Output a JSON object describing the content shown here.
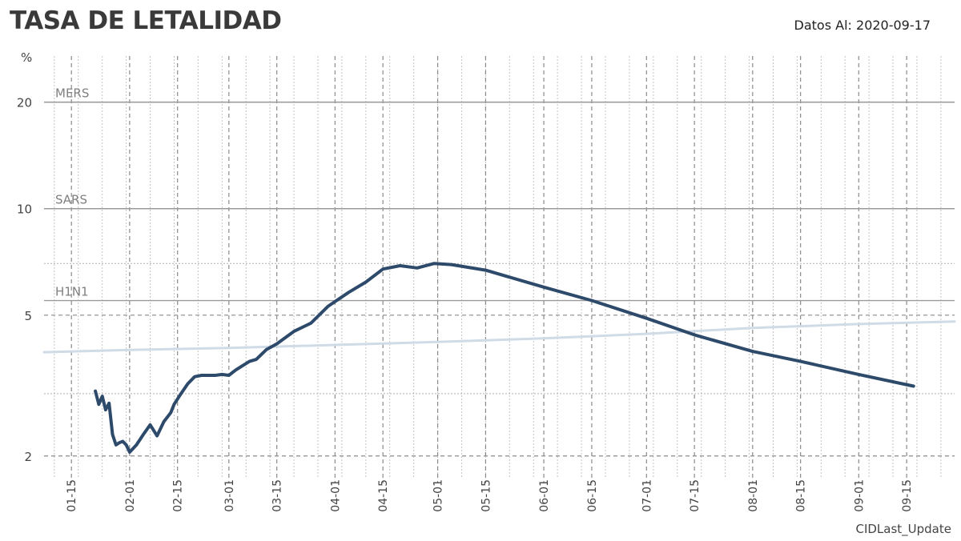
{
  "header": {
    "title": "TASA DE LETALIDAD",
    "date_label": "Datos Al: 2020-09-17"
  },
  "footer": {
    "label": "CIDLast_Update"
  },
  "chart_data": {
    "type": "line",
    "title": "TASA DE LETALIDAD",
    "ylabel": "%",
    "xlabel": "",
    "yscale": "log",
    "ylim": [
      1.8,
      27
    ],
    "xlim": [
      "2020-01-07",
      "2020-09-29"
    ],
    "grid": true,
    "yticks": [
      2,
      5,
      10,
      20
    ],
    "xticks": [
      "01-15",
      "02-01",
      "02-15",
      "03-01",
      "03-15",
      "04-01",
      "04-15",
      "05-01",
      "05-15",
      "06-01",
      "06-15",
      "07-01",
      "07-15",
      "08-01",
      "08-15",
      "09-01",
      "09-15"
    ],
    "reference_lines": [
      {
        "name": "MERS",
        "value": 20,
        "color": "#9a9a9a"
      },
      {
        "name": "SARS",
        "value": 10,
        "color": "#9a9a9a"
      },
      {
        "name": "H1N1",
        "value": 5.5,
        "color": "#9a9a9a"
      }
    ],
    "series": [
      {
        "color": "#2e4a6b",
        "x": [
          "2020-01-22",
          "2020-01-23",
          "2020-01-24",
          "2020-01-25",
          "2020-01-26",
          "2020-01-27",
          "2020-01-28",
          "2020-01-29",
          "2020-01-30",
          "2020-01-31",
          "2020-02-01",
          "2020-02-03",
          "2020-02-05",
          "2020-02-07",
          "2020-02-09",
          "2020-02-11",
          "2020-02-13",
          "2020-02-14",
          "2020-02-16",
          "2020-02-18",
          "2020-02-20",
          "2020-02-22",
          "2020-02-24",
          "2020-02-26",
          "2020-02-28",
          "2020-03-01",
          "2020-03-03",
          "2020-03-05",
          "2020-03-07",
          "2020-03-09",
          "2020-03-12",
          "2020-03-15",
          "2020-03-20",
          "2020-03-25",
          "2020-03-30",
          "2020-04-05",
          "2020-04-10",
          "2020-04-15",
          "2020-04-20",
          "2020-04-25",
          "2020-04-30",
          "2020-05-05",
          "2020-05-15",
          "2020-06-01",
          "2020-06-15",
          "2020-07-01",
          "2020-07-15",
          "2020-08-01",
          "2020-08-15",
          "2020-09-01",
          "2020-09-17"
        ],
        "values": [
          3.05,
          2.8,
          2.95,
          2.7,
          2.82,
          2.3,
          2.15,
          2.18,
          2.2,
          2.15,
          2.05,
          2.15,
          2.3,
          2.45,
          2.28,
          2.5,
          2.65,
          2.8,
          3.0,
          3.2,
          3.35,
          3.38,
          3.38,
          3.38,
          3.4,
          3.38,
          3.5,
          3.6,
          3.7,
          3.75,
          4.0,
          4.15,
          4.5,
          4.75,
          5.3,
          5.8,
          6.2,
          6.75,
          6.9,
          6.8,
          7.0,
          6.95,
          6.7,
          6.0,
          5.5,
          4.9,
          4.4,
          3.95,
          3.7,
          3.4,
          3.15
        ]
      },
      {
        "color": "#cfdbe6",
        "x": [
          "2020-01-07",
          "2020-02-01",
          "2020-03-01",
          "2020-04-01",
          "2020-05-01",
          "2020-06-01",
          "2020-07-01",
          "2020-08-01",
          "2020-09-01",
          "2020-09-29"
        ],
        "values": [
          3.93,
          3.99,
          4.04,
          4.12,
          4.2,
          4.3,
          4.43,
          4.6,
          4.72,
          4.8
        ]
      }
    ]
  }
}
